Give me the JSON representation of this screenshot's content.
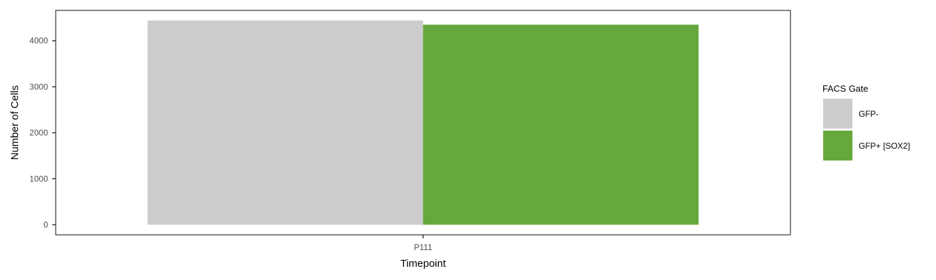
{
  "chart_data": {
    "type": "bar",
    "categories": [
      "P111"
    ],
    "series": [
      {
        "name": "GFP-",
        "values": [
          4440
        ],
        "color": "#cccccc"
      },
      {
        "name": "GFP+ [SOX2]",
        "values": [
          4350
        ],
        "color": "#66a83d"
      }
    ],
    "xlabel": "Timepoint",
    "ylabel": "Number of Cells",
    "ylim": [
      -220,
      4660
    ],
    "yticks": [
      0,
      1000,
      2000,
      3000,
      4000
    ],
    "legend": {
      "title": "FACS Gate",
      "position": "right"
    },
    "grid": false
  }
}
